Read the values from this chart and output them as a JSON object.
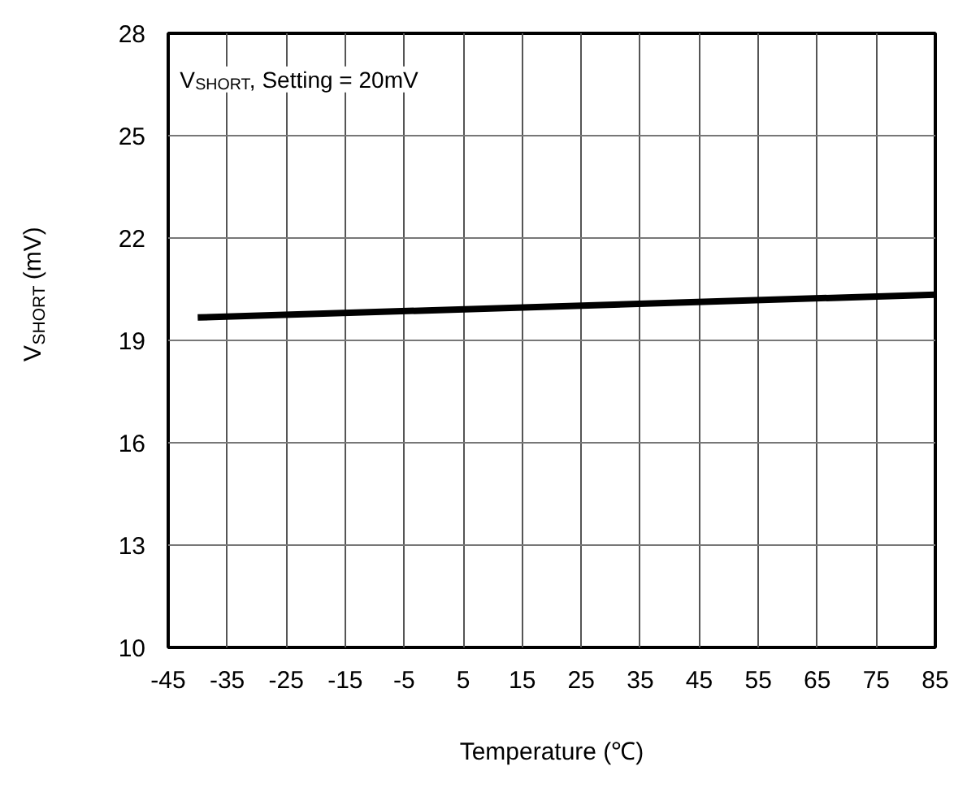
{
  "chart_data": {
    "type": "line",
    "xlabel": "Temperature (℃)",
    "ylabel": "V$_{SHORT}$ (mV)",
    "annotations": [
      "V$_{SHORT}$, Setting = 20mV"
    ],
    "series": [
      {
        "color": "#000000",
        "x": [
          -40,
          85
        ],
        "values": [
          19.67,
          20.34
        ]
      }
    ],
    "xlim": [
      -45,
      85
    ],
    "xticks": [
      -45,
      -35,
      -25,
      -15,
      -5,
      5,
      15,
      25,
      35,
      45,
      55,
      65,
      75,
      85
    ],
    "ylim": [
      10,
      28
    ],
    "yticks": [
      10,
      13,
      16,
      19,
      22,
      25,
      28
    ],
    "grid": true,
    "marker": "none",
    "line_style": "solid"
  }
}
